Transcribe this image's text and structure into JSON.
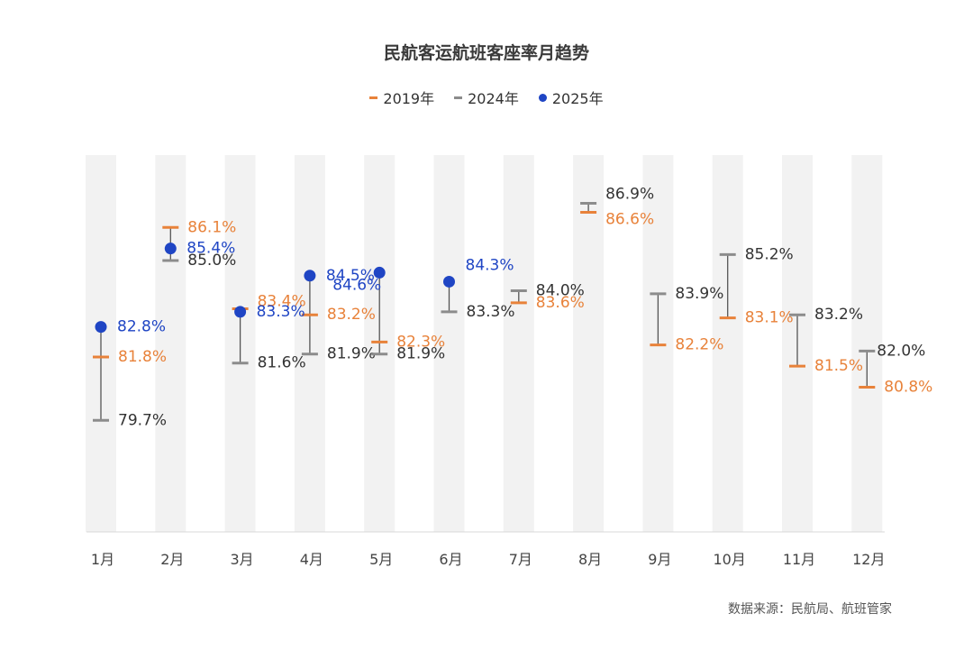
{
  "chart_data": {
    "type": "scatter",
    "title": "民航客运航班客座率月趋势",
    "categories": [
      "1月",
      "2月",
      "3月",
      "4月",
      "5月",
      "6月",
      "7月",
      "8月",
      "9月",
      "10月",
      "11月",
      "12月"
    ],
    "ylim": [
      76,
      88.5
    ],
    "series": [
      {
        "name": "2019年",
        "marker": "dash",
        "color": "#e8823a",
        "values": [
          81.8,
          86.1,
          83.4,
          83.2,
          82.3,
          null,
          83.6,
          86.6,
          82.2,
          83.1,
          81.5,
          80.8
        ]
      },
      {
        "name": "2024年",
        "marker": "dash",
        "color": "#8c8c8c",
        "values": [
          79.7,
          85.0,
          81.6,
          81.9,
          81.9,
          83.3,
          84.0,
          86.9,
          83.9,
          85.2,
          83.2,
          82.0
        ]
      },
      {
        "name": "2025年",
        "marker": "dot",
        "color": "#1f45c4",
        "values": [
          82.8,
          85.4,
          83.3,
          84.5,
          84.6,
          84.3,
          null,
          null,
          null,
          null,
          null,
          null
        ]
      }
    ],
    "data_labels": {
      "2019年": [
        "81.8%",
        "86.1%",
        "83.4%",
        "83.2%",
        "82.3%",
        null,
        "83.6%",
        "86.6%",
        "82.2%",
        "83.1%",
        "81.5%",
        "80.8%"
      ],
      "2024年": [
        "79.7%",
        "85.0%",
        "81.6%",
        "81.9%",
        "81.9%",
        "83.3%",
        "84.0%",
        "86.9%",
        "83.9%",
        "85.2%",
        "83.2%",
        "82.0%"
      ],
      "2025年": [
        "82.8%",
        "85.4%",
        "83.3%",
        "84.5%",
        "84.6%",
        "84.3%",
        null,
        null,
        null,
        null,
        null,
        null
      ]
    },
    "grid": false,
    "legend_position": "top-center",
    "background_bands": "alternating light gray columns per month"
  },
  "source_text": "数据来源：民航局、航班管家",
  "colors": {
    "c2019": "#e8823a",
    "c2024": "#8c8c8c",
    "c2025": "#1f45c4",
    "band": "#f2f2f2"
  }
}
